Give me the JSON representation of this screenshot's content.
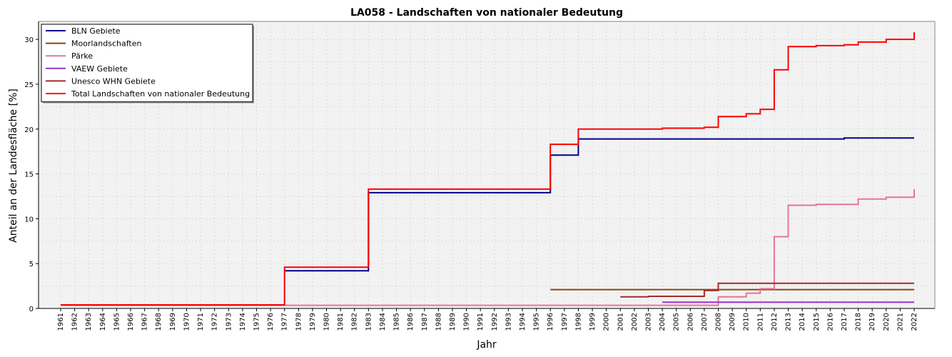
{
  "chart_data": {
    "type": "line",
    "step": true,
    "title": "LA058 - Landschaften von nationaler Bedeutung",
    "xlabel": "Jahr",
    "ylabel": "Anteil an der Landesfläche [%]",
    "xlim": [
      1961,
      2022
    ],
    "ylim": [
      0,
      32
    ],
    "yticks": [
      0,
      5,
      10,
      15,
      20,
      25,
      30
    ],
    "xtick_labels": [
      "1961",
      "1962",
      "1963",
      "1964",
      "1965",
      "1966",
      "1967",
      "1968",
      "1969",
      "1970",
      "1971",
      "1972",
      "1973",
      "1974",
      "1975",
      "1976",
      "1977",
      "1978",
      "1979",
      "1980",
      "1981",
      "1982",
      "1983",
      "1984",
      "1985",
      "1986",
      "1987",
      "1988",
      "1989",
      "1990",
      "1991",
      "1992",
      "1993",
      "1994",
      "1995",
      "1996",
      "1997",
      "1998",
      "1999",
      "2000",
      "2001",
      "2002",
      "2003",
      "2004",
      "2005",
      "2006",
      "2007",
      "2008",
      "2009",
      "2010",
      "2011",
      "2012",
      "2013",
      "2014",
      "2015",
      "2016",
      "2017",
      "2018",
      "2019",
      "2020",
      "2021",
      "2022"
    ],
    "grid": true,
    "legend_position": "top-left",
    "plot_background": "#f2f2f2",
    "series": [
      {
        "name": "BLN Gebiete",
        "color": "#00008b",
        "x": [
          1977,
          1983,
          1996,
          1998,
          2017,
          2022
        ],
        "y": [
          4.2,
          12.9,
          17.1,
          18.9,
          19.0,
          19.0
        ]
      },
      {
        "name": "Moorlandschaften",
        "color": "#8b4513",
        "x": [
          1996,
          2022
        ],
        "y": [
          2.1,
          2.1
        ]
      },
      {
        "name": "Pärke",
        "color": "#e8739a",
        "x": [
          1961,
          2008,
          2010,
          2011,
          2012,
          2013,
          2015,
          2018,
          2020,
          2022
        ],
        "y": [
          0.35,
          1.3,
          1.7,
          2.2,
          8.0,
          11.5,
          11.6,
          12.2,
          12.4,
          13.3
        ]
      },
      {
        "name": "VAEW Gebiete",
        "color": "#9932cc",
        "x": [
          2004,
          2022
        ],
        "y": [
          0.7,
          0.7
        ]
      },
      {
        "name": "Unesco WHN Gebiete",
        "color": "#a52a2a",
        "x": [
          2001,
          2003,
          2007,
          2008,
          2022
        ],
        "y": [
          1.3,
          1.35,
          2.0,
          2.8,
          2.8
        ]
      },
      {
        "name": "Total Landschaften von nationaler Bedeutung",
        "color": "#ff0000",
        "x": [
          1961,
          1977,
          1983,
          1996,
          1998,
          2004,
          2007,
          2008,
          2010,
          2011,
          2012,
          2013,
          2015,
          2017,
          2018,
          2020,
          2022
        ],
        "y": [
          0.4,
          4.6,
          13.3,
          18.3,
          20.0,
          20.1,
          20.2,
          21.4,
          21.7,
          22.2,
          26.6,
          29.2,
          29.3,
          29.4,
          29.7,
          30.0,
          30.8
        ]
      }
    ]
  }
}
